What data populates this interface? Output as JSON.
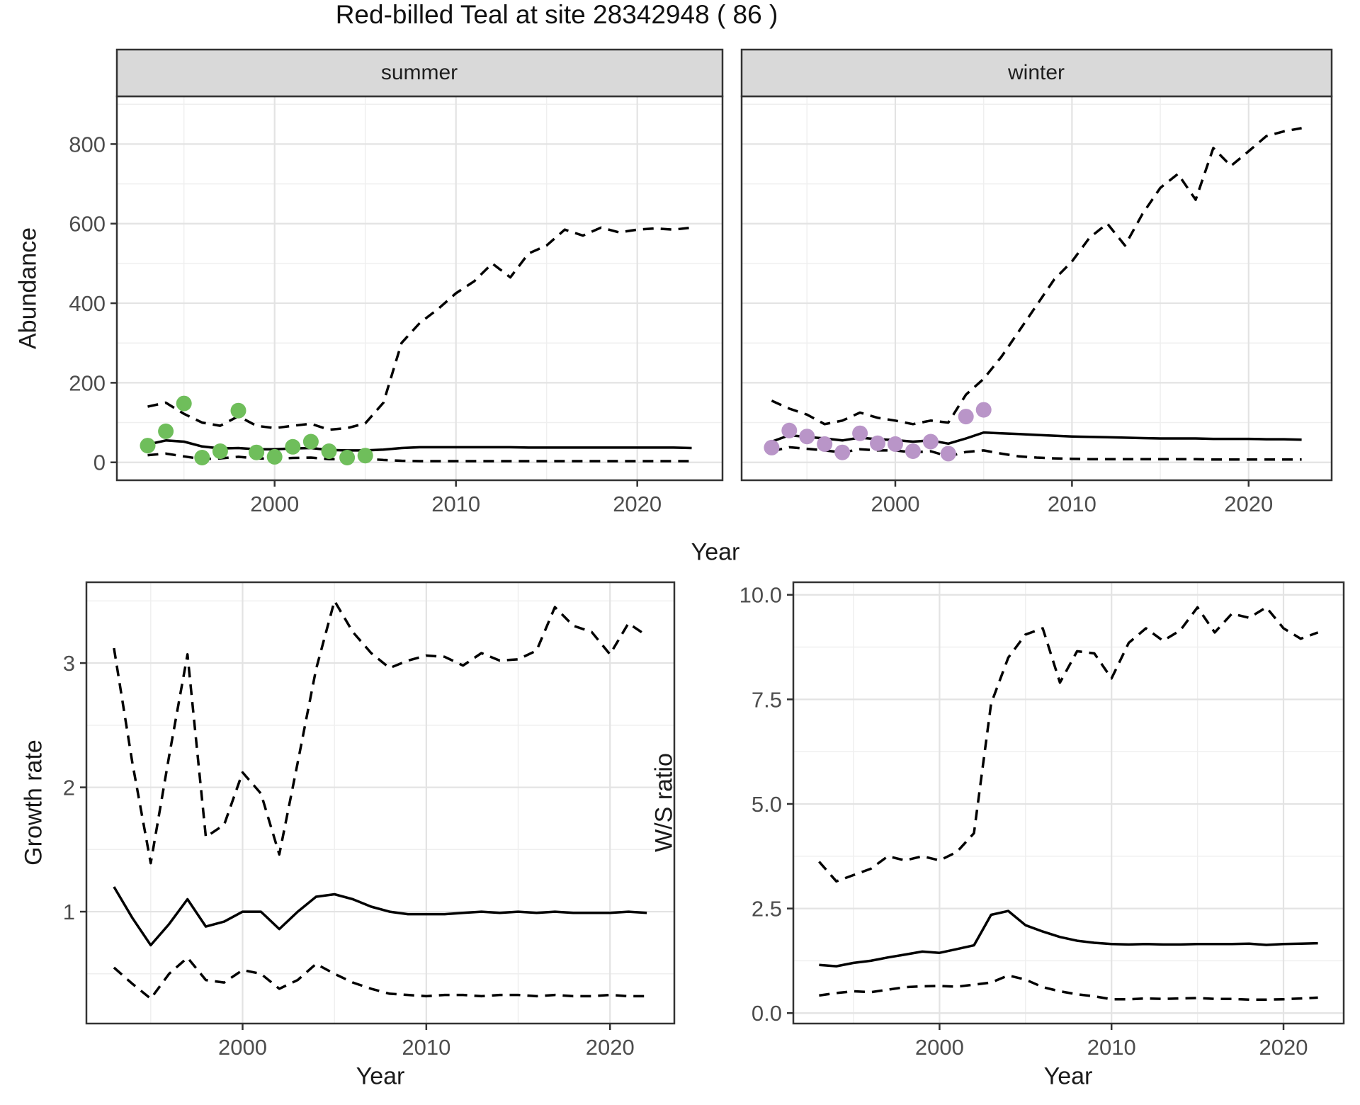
{
  "title": "Red-billed Teal at site 28342948 ( 86 )",
  "axis_labels": {
    "x": "Year",
    "y_abundance": "Abundance",
    "y_growth": "Growth rate",
    "y_ws": "W/S ratio"
  },
  "facets": {
    "summer": "summer",
    "winter": "winter"
  },
  "colors": {
    "summer_points": "#6FBE5B",
    "winter_points": "#B995C8",
    "line": "#000000",
    "tick_text": "#4D4D4D",
    "strip_bg": "#D9D9D9",
    "panel_border": "#333333",
    "grid_major": "#E3E3E3",
    "grid_minor": "#EFEFEF"
  },
  "chart_data": [
    {
      "id": "abundance-summer",
      "type": "line",
      "facet_label": "summer",
      "xlabel": "Year",
      "ylabel": "Abundance",
      "xlim": [
        1991.3,
        2024.7
      ],
      "ylim": [
        -45,
        920
      ],
      "xticks": [
        2000,
        2010,
        2020
      ],
      "xtick_labels": [
        "2000",
        "2010",
        "2020"
      ],
      "yticks": [
        0,
        200,
        400,
        600,
        800
      ],
      "ytick_labels": [
        "0",
        "200",
        "400",
        "600",
        "800"
      ],
      "grid": true,
      "legend": "none",
      "x": [
        1993,
        1994,
        1995,
        1996,
        1997,
        1998,
        1999,
        2000,
        2001,
        2002,
        2003,
        2004,
        2005,
        2006,
        2007,
        2008,
        2009,
        2010,
        2011,
        2012,
        2013,
        2014,
        2015,
        2016,
        2017,
        2018,
        2019,
        2020,
        2021,
        2022,
        2023
      ],
      "series": [
        {
          "name": "median",
          "style": "solid",
          "values": [
            45,
            55,
            52,
            40,
            35,
            36,
            33,
            33,
            35,
            36,
            31,
            30,
            30,
            32,
            36,
            38,
            38,
            38,
            38,
            38,
            38,
            37,
            37,
            37,
            37,
            37,
            37,
            37,
            37,
            37,
            36
          ]
        },
        {
          "name": "upper_ci",
          "style": "dashed",
          "values": [
            140,
            150,
            122,
            100,
            92,
            116,
            92,
            86,
            92,
            97,
            82,
            86,
            98,
            150,
            300,
            350,
            385,
            425,
            455,
            500,
            465,
            525,
            545,
            585,
            570,
            590,
            578,
            585,
            588,
            585,
            590
          ]
        },
        {
          "name": "lower_ci",
          "style": "dashed",
          "values": [
            18,
            22,
            15,
            8,
            10,
            14,
            10,
            9,
            11,
            12,
            8,
            8,
            9,
            6,
            4,
            3,
            3,
            3,
            3,
            3,
            3,
            3,
            3,
            3,
            3,
            3,
            3,
            3,
            3,
            3,
            3
          ]
        }
      ],
      "points": {
        "name": "observed-counts-summer",
        "color_key": "summer_points",
        "x": [
          1993,
          1994,
          1995,
          1996,
          1997,
          1998,
          1999,
          2000,
          2001,
          2002,
          2003,
          2004,
          2005
        ],
        "y": [
          42,
          78,
          148,
          12,
          28,
          130,
          25,
          14,
          39,
          52,
          28,
          12,
          17
        ]
      }
    },
    {
      "id": "abundance-winter",
      "type": "line",
      "facet_label": "winter",
      "xlabel": "Year",
      "ylabel": "Abundance",
      "xlim": [
        1991.3,
        2024.7
      ],
      "ylim": [
        -45,
        920
      ],
      "xticks": [
        2000,
        2010,
        2020
      ],
      "xtick_labels": [
        "2000",
        "2010",
        "2020"
      ],
      "yticks": [
        0,
        200,
        400,
        600,
        800
      ],
      "ytick_labels": [
        "0",
        "200",
        "400",
        "600",
        "800"
      ],
      "grid": true,
      "legend": "none",
      "x": [
        1993,
        1994,
        1995,
        1996,
        1997,
        1998,
        1999,
        2000,
        2001,
        2002,
        2003,
        2004,
        2005,
        2006,
        2007,
        2008,
        2009,
        2010,
        2011,
        2012,
        2013,
        2014,
        2015,
        2016,
        2017,
        2018,
        2019,
        2020,
        2021,
        2022,
        2023
      ],
      "series": [
        {
          "name": "median",
          "style": "solid",
          "values": [
            52,
            68,
            64,
            60,
            55,
            62,
            58,
            56,
            52,
            55,
            47,
            60,
            75,
            73,
            71,
            69,
            67,
            65,
            64,
            63,
            62,
            61,
            60,
            60,
            60,
            59,
            59,
            59,
            58,
            58,
            57
          ]
        },
        {
          "name": "upper_ci",
          "style": "dashed",
          "values": [
            155,
            135,
            120,
            96,
            105,
            125,
            112,
            105,
            96,
            105,
            100,
            170,
            210,
            265,
            330,
            395,
            460,
            505,
            565,
            600,
            545,
            625,
            690,
            725,
            660,
            790,
            745,
            782,
            820,
            832,
            840
          ]
        },
        {
          "name": "lower_ci",
          "style": "dashed",
          "values": [
            28,
            38,
            34,
            30,
            25,
            33,
            30,
            30,
            25,
            28,
            15,
            26,
            30,
            22,
            15,
            12,
            10,
            9,
            8,
            8,
            8,
            8,
            8,
            8,
            8,
            7,
            7,
            7,
            7,
            7,
            7
          ]
        }
      ],
      "points": {
        "name": "observed-counts-winter",
        "color_key": "winter_points",
        "x": [
          1993,
          1994,
          1995,
          1996,
          1997,
          1998,
          1999,
          2000,
          2001,
          2002,
          2003,
          2004,
          2005
        ],
        "y": [
          37,
          80,
          65,
          46,
          25,
          73,
          48,
          46,
          28,
          52,
          22,
          115,
          132
        ]
      }
    },
    {
      "id": "growth-rate",
      "type": "line",
      "xlabel": "Year",
      "ylabel": "Growth rate",
      "xlim": [
        1991.5,
        2023.5
      ],
      "ylim": [
        0.1,
        3.65
      ],
      "xticks": [
        2000,
        2010,
        2020
      ],
      "xtick_labels": [
        "2000",
        "2010",
        "2020"
      ],
      "yticks": [
        1,
        2,
        3
      ],
      "ytick_labels": [
        "1",
        "2",
        "3"
      ],
      "grid": true,
      "legend": "none",
      "x": [
        1993,
        1994,
        1995,
        1996,
        1997,
        1998,
        1999,
        2000,
        2001,
        2002,
        2003,
        2004,
        2005,
        2006,
        2007,
        2008,
        2009,
        2010,
        2011,
        2012,
        2013,
        2014,
        2015,
        2016,
        2017,
        2018,
        2019,
        2020,
        2021,
        2022
      ],
      "series": [
        {
          "name": "median",
          "style": "solid",
          "values": [
            1.2,
            0.95,
            0.73,
            0.9,
            1.1,
            0.88,
            0.92,
            1.0,
            1.0,
            0.86,
            1.0,
            1.12,
            1.14,
            1.1,
            1.04,
            1.0,
            0.98,
            0.98,
            0.98,
            0.99,
            1.0,
            0.99,
            1.0,
            0.99,
            1.0,
            0.99,
            0.99,
            0.99,
            1.0,
            0.99
          ]
        },
        {
          "name": "upper_ci",
          "style": "dashed",
          "values": [
            3.12,
            2.2,
            1.39,
            2.25,
            3.07,
            1.6,
            1.7,
            2.12,
            1.95,
            1.46,
            2.2,
            2.95,
            3.5,
            3.25,
            3.08,
            2.96,
            3.02,
            3.06,
            3.05,
            2.98,
            3.08,
            3.02,
            3.03,
            3.1,
            3.45,
            3.3,
            3.25,
            3.07,
            3.32,
            3.22
          ]
        },
        {
          "name": "lower_ci",
          "style": "dashed",
          "values": [
            0.55,
            0.42,
            0.3,
            0.5,
            0.63,
            0.45,
            0.43,
            0.53,
            0.5,
            0.38,
            0.45,
            0.58,
            0.5,
            0.43,
            0.38,
            0.34,
            0.33,
            0.32,
            0.33,
            0.33,
            0.32,
            0.33,
            0.33,
            0.32,
            0.33,
            0.32,
            0.32,
            0.33,
            0.32,
            0.32
          ]
        }
      ]
    },
    {
      "id": "ws-ratio",
      "type": "line",
      "xlabel": "Year",
      "ylabel": "W/S ratio",
      "xlim": [
        1991.5,
        2023.5
      ],
      "ylim": [
        -0.25,
        10.3
      ],
      "xticks": [
        2000,
        2010,
        2020
      ],
      "xtick_labels": [
        "2000",
        "2010",
        "2020"
      ],
      "yticks": [
        0,
        2.5,
        5,
        7.5,
        10
      ],
      "ytick_labels": [
        "0.0",
        "2.5",
        "5.0",
        "7.5",
        "10.0"
      ],
      "grid": true,
      "legend": "none",
      "x": [
        1993,
        1994,
        1995,
        1996,
        1997,
        1998,
        1999,
        2000,
        2001,
        2002,
        2003,
        2004,
        2005,
        2006,
        2007,
        2008,
        2009,
        2010,
        2011,
        2012,
        2013,
        2014,
        2015,
        2016,
        2017,
        2018,
        2019,
        2020,
        2021,
        2022
      ],
      "series": [
        {
          "name": "median",
          "style": "solid",
          "values": [
            1.15,
            1.12,
            1.2,
            1.25,
            1.33,
            1.4,
            1.47,
            1.44,
            1.53,
            1.62,
            2.35,
            2.44,
            2.1,
            1.95,
            1.82,
            1.73,
            1.68,
            1.65,
            1.64,
            1.65,
            1.64,
            1.64,
            1.65,
            1.65,
            1.65,
            1.66,
            1.63,
            1.65,
            1.66,
            1.67
          ]
        },
        {
          "name": "upper_ci",
          "style": "dashed",
          "values": [
            3.62,
            3.15,
            3.3,
            3.45,
            3.75,
            3.65,
            3.75,
            3.65,
            3.85,
            4.3,
            7.4,
            8.5,
            9.05,
            9.2,
            7.9,
            8.65,
            8.6,
            8.0,
            8.85,
            9.2,
            8.9,
            9.15,
            9.7,
            9.1,
            9.55,
            9.45,
            9.7,
            9.2,
            8.95,
            9.1
          ]
        },
        {
          "name": "lower_ci",
          "style": "dashed",
          "values": [
            0.42,
            0.48,
            0.52,
            0.5,
            0.56,
            0.62,
            0.64,
            0.65,
            0.63,
            0.68,
            0.73,
            0.9,
            0.8,
            0.62,
            0.52,
            0.45,
            0.4,
            0.33,
            0.33,
            0.35,
            0.34,
            0.35,
            0.36,
            0.34,
            0.34,
            0.32,
            0.32,
            0.33,
            0.35,
            0.37
          ]
        }
      ]
    }
  ]
}
